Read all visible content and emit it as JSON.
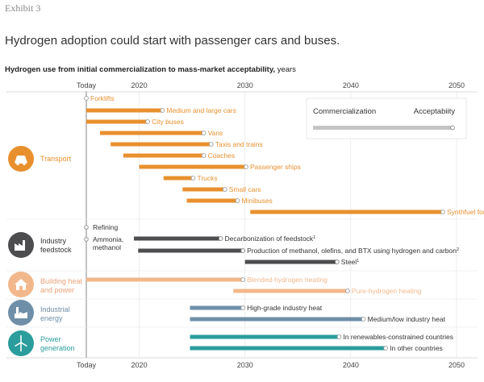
{
  "exhibit_label": "Exhibit 3",
  "headline": "Hydrogen adoption could start with passenger cars and buses.",
  "subtitle_bold": "Hydrogen use from initial commercialization to mass-market acceptability,",
  "subtitle_unit": "years",
  "colors": {
    "transport": "#E8902E",
    "industry_feedstock": "#4D4D4F",
    "building_heat": "#F2B88C",
    "industrial_energy": "#6F8FA8",
    "power_generation": "#2A9D9C",
    "legend_bar": "#C4C4C4",
    "today_line": "#9A9A9A"
  },
  "chart_data": {
    "type": "gantt",
    "title": "Hydrogen use from initial commercialization to mass-market acceptability, years",
    "xlim": [
      2015,
      2050
    ],
    "axis_ticks": [
      {
        "value": 2015,
        "label": "Today"
      },
      {
        "value": 2020,
        "label": "2020"
      },
      {
        "value": 2030,
        "label": "2030"
      },
      {
        "value": 2040,
        "label": "2040"
      },
      {
        "value": 2050,
        "label": "2050"
      }
    ],
    "legend": {
      "start_label": "Commercialization",
      "end_label": "Acceptabiity"
    },
    "sectors": [
      {
        "key": "transport",
        "label": "Transport",
        "color": "#E8902E",
        "icon": "car-icon",
        "items": [
          {
            "label": "Forklifts",
            "start": 2015,
            "end": 2015
          },
          {
            "label": "Medium and large cars",
            "start": 2015,
            "end": 2022.2
          },
          {
            "label": "City buses",
            "start": 2015,
            "end": 2020.8
          },
          {
            "label": "Vans",
            "start": 2016.3,
            "end": 2026.1
          },
          {
            "label": "Taxis and trains",
            "start": 2017.3,
            "end": 2026.8
          },
          {
            "label": "Coaches",
            "start": 2018.5,
            "end": 2026.1
          },
          {
            "label": "Passenger ships",
            "start": 2020,
            "end": 2030.1
          },
          {
            "label": "Trucks",
            "start": 2022.3,
            "end": 2025.1
          },
          {
            "label": "Small cars",
            "start": 2024.1,
            "end": 2028.1
          },
          {
            "label": "Minibuses",
            "start": 2024.5,
            "end": 2029.3
          },
          {
            "label": "Synthfuel for freight ships and airplanes",
            "start": 2030.5,
            "end": 2048.7
          }
        ]
      },
      {
        "key": "industry_feedstock",
        "label": "Industry feedstock",
        "color": "#4D4D4F",
        "icon": "factory-icon",
        "items": [
          {
            "label": "Refining",
            "start": 2015,
            "end": 2015
          },
          {
            "label": "Ammonia, methanol",
            "start": 2015,
            "end": 2015
          },
          {
            "label": "Decarbonization of feedstock",
            "footnote": "1",
            "start": 2019.5,
            "end": 2027.7
          },
          {
            "label": "Production of methanol, olefins, and BTX using hydrogen and carbon",
            "footnote": "2",
            "start": 2019.9,
            "end": 2029.8
          },
          {
            "label": "Steel",
            "footnote": "1",
            "start": 2030,
            "end": 2038.7
          }
        ]
      },
      {
        "key": "building_heat",
        "label": "Building heat and power",
        "color": "#F2B88C",
        "icon": "house-icon",
        "items": [
          {
            "label": "Blended-hydrogen heating",
            "start": 2015,
            "end": 2029.8
          },
          {
            "label": "Pure-hydrogen heating",
            "start": 2028.9,
            "end": 2039.7
          }
        ]
      },
      {
        "key": "industrial_energy",
        "label": "Industrial energy",
        "color": "#6F8FA8",
        "icon": "industry-icon",
        "items": [
          {
            "label": "High-grade industry heat",
            "start": 2024.8,
            "end": 2029.8
          },
          {
            "label": "Medium/low industry heat",
            "start": 2024.8,
            "end": 2041.2
          }
        ]
      },
      {
        "key": "power_generation",
        "label": "Power generation",
        "color": "#2A9D9C",
        "icon": "wind-turbine-icon",
        "items": [
          {
            "label": "In renewables-constrained countries",
            "start": 2024.8,
            "end": 2038.9
          },
          {
            "label": "In other countries",
            "start": 2024.8,
            "end": 2043.3
          }
        ]
      }
    ]
  }
}
